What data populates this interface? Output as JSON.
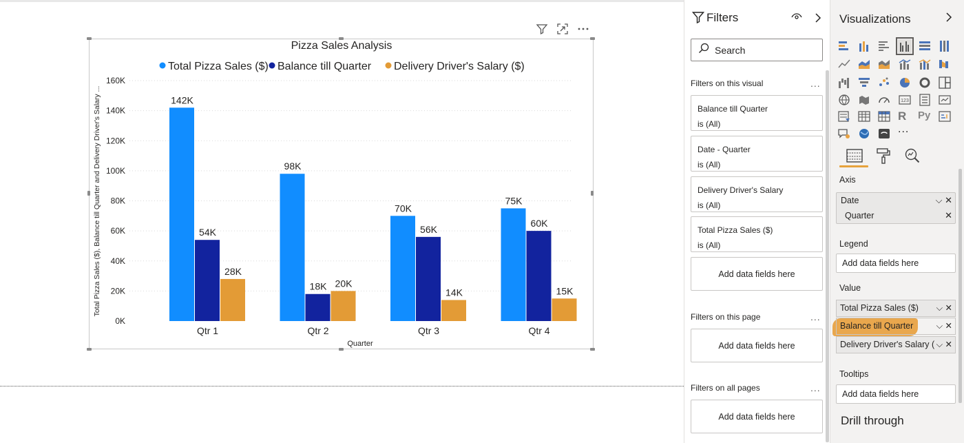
{
  "visual_header": {
    "icons": [
      "filter-icon",
      "focus-mode-icon",
      "more-options-icon"
    ]
  },
  "chart_data": {
    "type": "bar",
    "title": "Pizza Sales Analysis",
    "categories": [
      "Qtr 1",
      "Qtr 2",
      "Qtr 3",
      "Qtr 4"
    ],
    "series": [
      {
        "name": "Total Pizza Sales ($)",
        "color": "#118dff",
        "values": [
          142000,
          98000,
          70000,
          75000
        ],
        "labels": [
          "142K",
          "98K",
          "70K",
          "75K"
        ]
      },
      {
        "name": "Balance till Quarter",
        "color": "#12239e",
        "values": [
          54000,
          18000,
          56000,
          60000
        ],
        "labels": [
          "54K",
          "18K",
          "56K",
          "60K"
        ]
      },
      {
        "name": "Delivery Driver's Salary ($)",
        "color": "#e39b36",
        "values": [
          28000,
          20000,
          14000,
          15000
        ],
        "labels": [
          "28K",
          "20K",
          "14K",
          "15K"
        ]
      }
    ],
    "xlabel": "Quarter",
    "ylabel": "Total Pizza Sales ($), Balance till Quarter and Delivery Driver's Salary ...",
    "ylim": [
      0,
      160000
    ],
    "yticks": [
      0,
      20000,
      40000,
      60000,
      80000,
      100000,
      120000,
      140000,
      160000
    ],
    "ytick_labels": [
      "0K",
      "20K",
      "40K",
      "60K",
      "80K",
      "100K",
      "120K",
      "140K",
      "160K"
    ],
    "grid": true,
    "legend_position": "top-center"
  },
  "filters_pane": {
    "title": "Filters",
    "search_placeholder": "Search",
    "on_this_visual_label": "Filters on this visual",
    "visual_filters": [
      {
        "name": "Balance till Quarter",
        "state": "is (All)"
      },
      {
        "name": "Date - Quarter",
        "state": "is (All)"
      },
      {
        "name": "Delivery Driver's Salary",
        "state": "is (All)"
      },
      {
        "name": "Total Pizza Sales ($)",
        "state": "is (All)"
      }
    ],
    "add_fields_visual": "Add data fields here",
    "on_this_page_label": "Filters on this page",
    "add_fields_page": "Add data fields here",
    "on_all_pages_label": "Filters on all pages",
    "add_fields_all": "Add data fields here",
    "more": "..."
  },
  "viz_pane": {
    "title": "Visualizations",
    "more_visuals": "...",
    "r_visual": "R",
    "py_visual": "Py",
    "axis_label": "Axis",
    "axis_fields": {
      "group": "Date",
      "child": "Quarter"
    },
    "legend_label": "Legend",
    "legend_placeholder": "Add data fields here",
    "value_label": "Value",
    "value_fields": [
      "Total Pizza Sales ($)",
      "Balance till Quarter",
      "Delivery Driver's Salary ("
    ],
    "tooltips_label": "Tooltips",
    "tooltips_placeholder": "Add data fields here",
    "drill_through": "Drill through",
    "highlight_color": "#e8a243"
  }
}
